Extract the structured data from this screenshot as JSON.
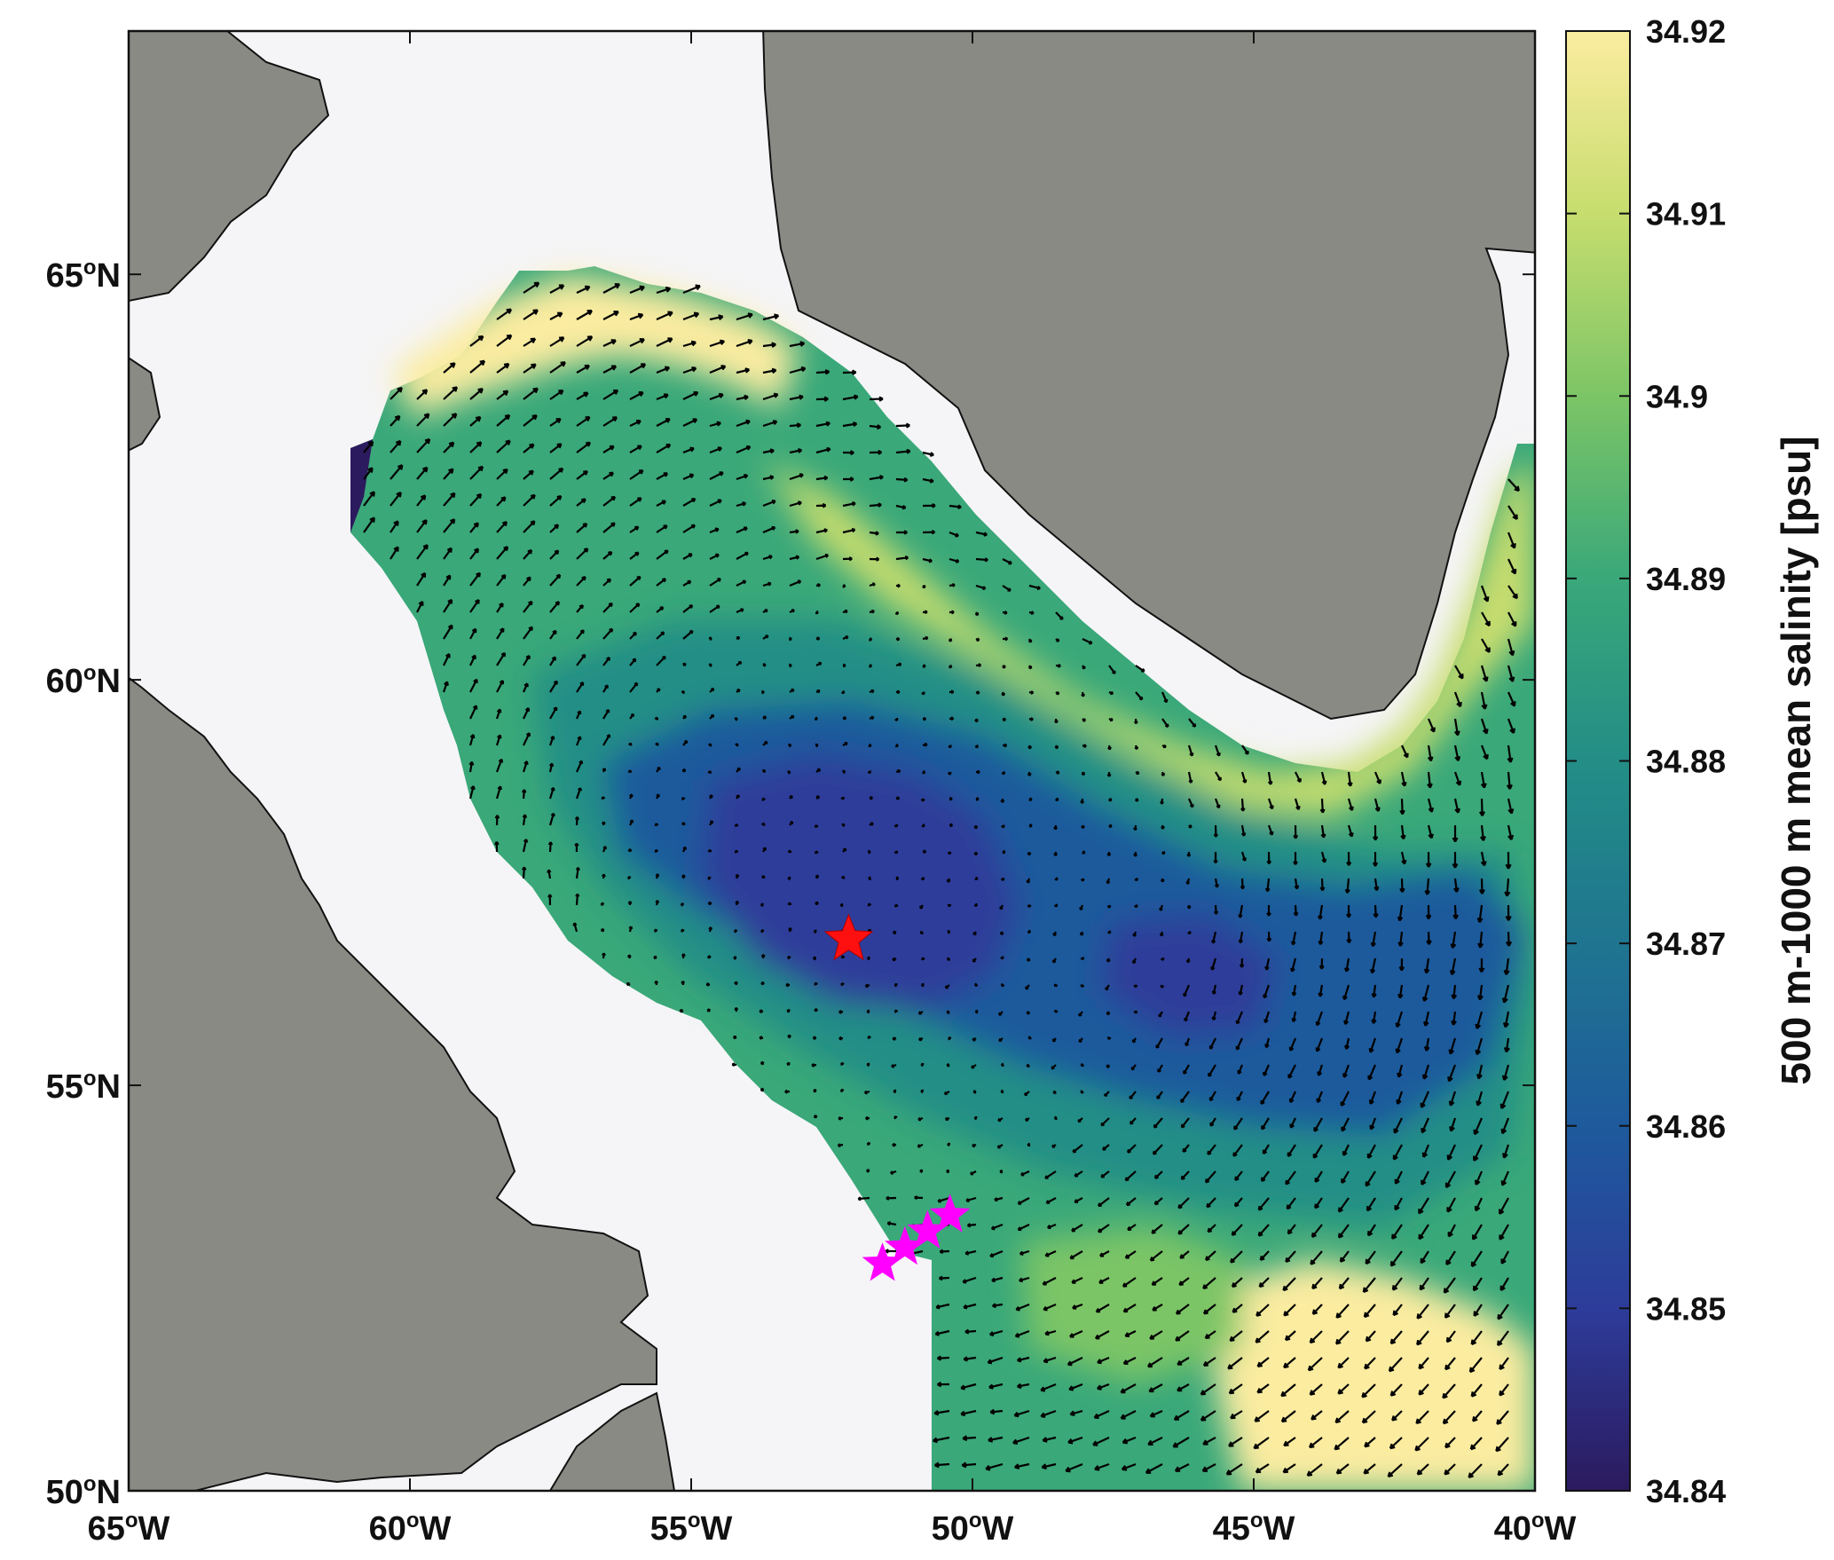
{
  "map": {
    "x_ticks": [
      {
        "lon": -65,
        "label": "65",
        "hemi": "W"
      },
      {
        "lon": -60,
        "label": "60",
        "hemi": "W"
      },
      {
        "lon": -55,
        "label": "55",
        "hemi": "W"
      },
      {
        "lon": -50,
        "label": "50",
        "hemi": "W"
      },
      {
        "lon": -45,
        "label": "45",
        "hemi": "W"
      },
      {
        "lon": -40,
        "label": "40",
        "hemi": "W"
      }
    ],
    "y_ticks": [
      {
        "lat": 65,
        "label": "65",
        "hemi": "N"
      },
      {
        "lat": 60,
        "label": "60",
        "hemi": "N"
      },
      {
        "lat": 55,
        "label": "55",
        "hemi": "N"
      },
      {
        "lat": 50,
        "label": "50",
        "hemi": "N"
      }
    ],
    "lon_range": [
      -65,
      -40
    ],
    "lat_range": [
      50,
      68
    ],
    "colors": {
      "land": "#8a8a85",
      "ocean_nodata": "#f5f5f7",
      "marker_red": "#ff1010",
      "marker_magenta": "#ff00ff"
    },
    "markers": {
      "red_star": {
        "lon": -52.2,
        "lat": 56.8
      },
      "magenta_stars": [
        {
          "lon": -51.6,
          "lat": 52.8
        },
        {
          "lon": -51.2,
          "lat": 53.0
        },
        {
          "lon": -50.8,
          "lat": 53.2
        },
        {
          "lon": -50.4,
          "lat": 53.4
        }
      ]
    }
  },
  "colorbar": {
    "title": "500 m-1000 m mean salinity [psu]",
    "ticks": [
      "34.92",
      "34.91",
      "34.9",
      "34.89",
      "34.88",
      "34.87",
      "34.86",
      "34.85",
      "34.84"
    ],
    "range": [
      34.84,
      34.92
    ],
    "colormap_stops": [
      "#2c1a5e",
      "#2d3c9a",
      "#1e5a9c",
      "#1f7590",
      "#238e86",
      "#3aa879",
      "#7cc566",
      "#c7dd6e",
      "#fbeca0"
    ]
  }
}
